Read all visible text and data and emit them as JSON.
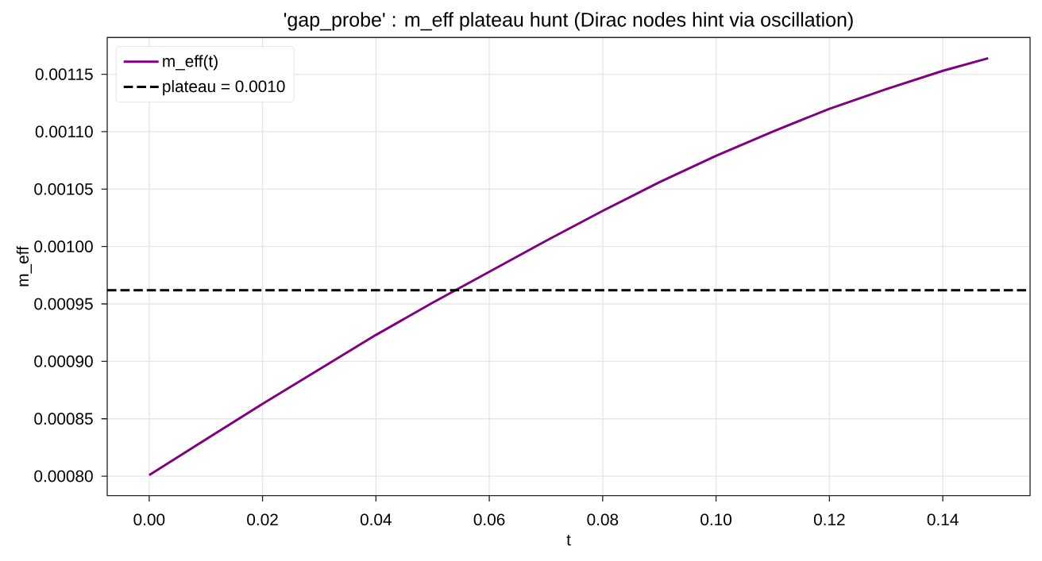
{
  "chart_data": {
    "type": "line",
    "title": "'gap_probe' : m_eff plateau hunt (Dirac nodes hint via oscillation)",
    "xlabel": "t",
    "ylabel": "m_eff",
    "x": [
      0,
      0.01,
      0.02,
      0.03,
      0.04,
      0.05,
      0.06,
      0.07,
      0.08,
      0.09,
      0.1,
      0.11,
      0.12,
      0.13,
      0.14,
      0.148
    ],
    "series": [
      {
        "name": "m_eff(t)",
        "color": "#800080",
        "values": [
          0.000801,
          0.000832,
          0.000863,
          0.000893,
          0.000923,
          0.000951,
          0.000978,
          0.001005,
          0.001031,
          0.001056,
          0.001079,
          0.0011,
          0.00112,
          0.001137,
          0.001153,
          0.001164
        ]
      }
    ],
    "xlim": [
      -0.0074,
      0.1554
    ],
    "ylim": [
      0.000783,
      0.001182
    ],
    "xticks": [
      {
        "value": 0,
        "label": "0.00"
      },
      {
        "value": 0.02,
        "label": "0.02"
      },
      {
        "value": 0.04,
        "label": "0.04"
      },
      {
        "value": 0.06,
        "label": "0.06"
      },
      {
        "value": 0.08,
        "label": "0.08"
      },
      {
        "value": 0.1,
        "label": "0.10"
      },
      {
        "value": 0.12,
        "label": "0.12"
      },
      {
        "value": 0.14,
        "label": "0.14"
      }
    ],
    "yticks": [
      {
        "value": 0.0008,
        "label": "0.00080"
      },
      {
        "value": 0.00085,
        "label": "0.00085"
      },
      {
        "value": 0.0009,
        "label": "0.00090"
      },
      {
        "value": 0.00095,
        "label": "0.00095"
      },
      {
        "value": 0.001,
        "label": "0.00100"
      },
      {
        "value": 0.00105,
        "label": "0.00105"
      },
      {
        "value": 0.0011,
        "label": "0.00110"
      },
      {
        "value": 0.00115,
        "label": "0.00115"
      }
    ],
    "ref_lines": [
      {
        "axis": "y",
        "value": 0.000962,
        "label": "plateau = 0.0010",
        "color": "#000000",
        "line_style": "dashed"
      }
    ],
    "grid": true,
    "legend": "top left"
  }
}
